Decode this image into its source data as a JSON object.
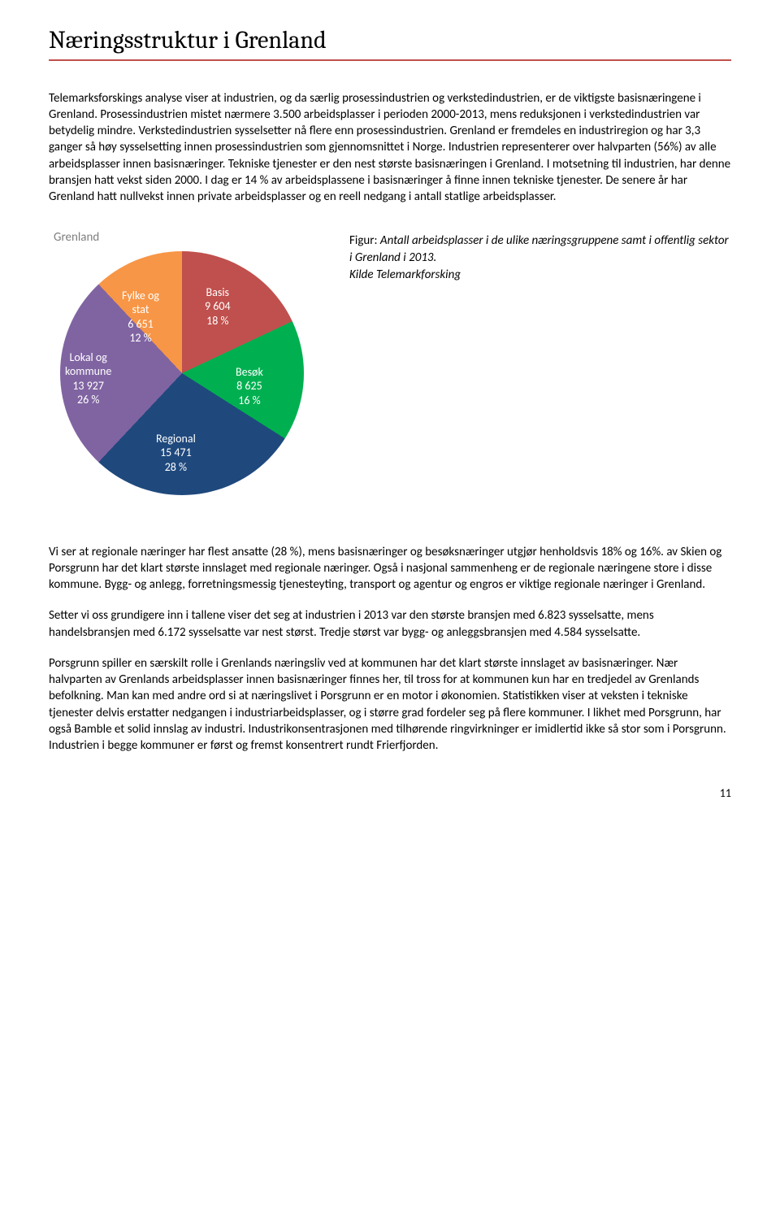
{
  "heading": "Næringsstruktur i Grenland",
  "para1": "Telemarksforskings analyse viser at industrien, og da særlig prosessindustrien og verkstedindustrien, er de viktigste basisnæringene i Grenland. Prosessindustrien mistet nærmere 3.500 arbeidsplasser i perioden 2000-2013, mens reduksjonen i verkstedindustrien var betydelig mindre. Verkstedindustrien sysselsetter nå flere enn prosessindustrien. Grenland er fremdeles en industriregion og har 3,3 ganger så høy sysselsetting innen prosessindustrien som gjennomsnittet i Norge. Industrien representerer over halvparten (56%) av alle arbeidsplasser innen basisnæringer. Tekniske tjenester er den nest største basisnæringen i Grenland. I motsetning til industrien, har denne bransjen hatt vekst siden 2000. I dag er 14 % av arbeidsplassene i basisnæringer å finne innen tekniske tjenester. De senere år har Grenland hatt nullvekst innen private arbeidsplasser og en reell nedgang i antall statlige arbeidsplasser.",
  "chart": {
    "title": "Grenland",
    "type": "pie",
    "slices": [
      {
        "label_name": "Fylke og\nstat",
        "value": 6651,
        "percent": 12,
        "color": "#f79646",
        "label_line1": "Fylke og",
        "label_line2": "stat",
        "label_line3": "6 651",
        "label_line4": "12 %"
      },
      {
        "label_name": "Basis",
        "value": 9604,
        "percent": 18,
        "color": "#c0504d",
        "label_line1": "Basis",
        "label_line2": "9 604",
        "label_line3": "18 %"
      },
      {
        "label_name": "Besøk",
        "value": 8625,
        "percent": 16,
        "color": "#00b050",
        "label_line1": "Besøk",
        "label_line2": "8 625",
        "label_line3": "16 %"
      },
      {
        "label_name": "Regional",
        "value": 15471,
        "percent": 28,
        "color": "#1f497d",
        "label_line1": "Regional",
        "label_line2": "15 471",
        "label_line3": "28 %"
      },
      {
        "label_name": "Lokal og\nkommune",
        "value": 13927,
        "percent": 26,
        "color": "#8064a2",
        "label_line1": "Lokal og",
        "label_line2": "kommune",
        "label_line3": "13 927",
        "label_line4": "26 %"
      }
    ],
    "slice_boundaries_deg": [
      0,
      43.2,
      108.0,
      165.6,
      266.4,
      360
    ],
    "label_color": "#ffffff",
    "label_fontsize": 14
  },
  "caption": {
    "lead": "Figur: ",
    "italic": "Antall arbeidsplasser i de ulike næringsgruppene samt i offentlig sektor i Grenland i 2013.\nKilde Telemarkforsking"
  },
  "para2": "Vi ser at regionale næringer har flest ansatte (28 %), mens basisnæringer og besøksnæringer utgjør henholdsvis 18% og 16%. av Skien og Porsgrunn har det klart største innslaget med regionale næringer. Også i nasjonal sammenheng er de regionale næringene store i disse kommune. Bygg- og anlegg, forretningsmessig tjenesteyting, transport og agentur og engros er viktige regionale næringer i Grenland.",
  "para3": "Setter vi oss grundigere inn i tallene viser det seg at industrien i 2013 var den største bransjen med 6.823 sysselsatte, mens handelsbransjen med 6.172 sysselsatte var nest størst. Tredje størst var bygg- og anleggsbransjen med 4.584 sysselsatte.",
  "para4": "Porsgrunn spiller en særskilt rolle i Grenlands næringsliv ved at kommunen har det klart største innslaget av basisnæringer. Nær halvparten av Grenlands arbeidsplasser innen basisnæringer finnes her, til tross for at kommunen kun har en tredjedel av Grenlands befolkning.  Man kan med andre ord si at næringslivet i Porsgrunn er en motor i økonomien.  Statistikken viser at veksten i tekniske tjenester delvis erstatter nedgangen i industriarbeidsplasser, og i større grad fordeler seg på flere kommuner.  I likhet med Porsgrunn, har også Bamble et solid innslag av industri. Industrikonsentrasjonen med tilhørende ringvirkninger er imidlertid ikke så stor som i Porsgrunn. Industrien i begge kommuner er først og fremst konsentrert rundt Frierfjorden.",
  "page_number": "11"
}
